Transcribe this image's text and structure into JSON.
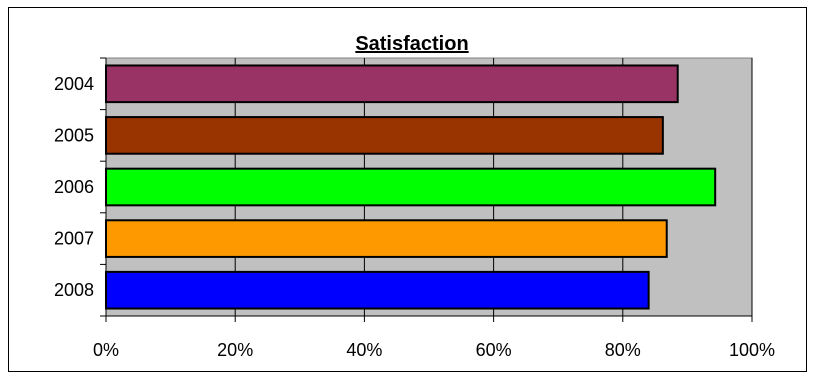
{
  "chart_data": {
    "type": "bar",
    "orientation": "horizontal",
    "title": "Satisfaction",
    "xlabel": "",
    "ylabel": "",
    "categories": [
      "2004",
      "2005",
      "2006",
      "2007",
      "2008"
    ],
    "values": [
      88.5,
      86.2,
      94.3,
      86.8,
      84.0
    ],
    "value_unit": "%",
    "xlim": [
      0,
      100
    ],
    "x_ticks": [
      0,
      20,
      40,
      60,
      80,
      100
    ],
    "x_tick_labels": [
      "0%",
      "20%",
      "40%",
      "60%",
      "80%",
      "100%"
    ],
    "bar_colors": [
      "#993366",
      "#993300",
      "#00ff00",
      "#ff9900",
      "#0000ff"
    ],
    "plot_background": "#c0c0c0",
    "grid": "vertical",
    "legend": "none"
  }
}
